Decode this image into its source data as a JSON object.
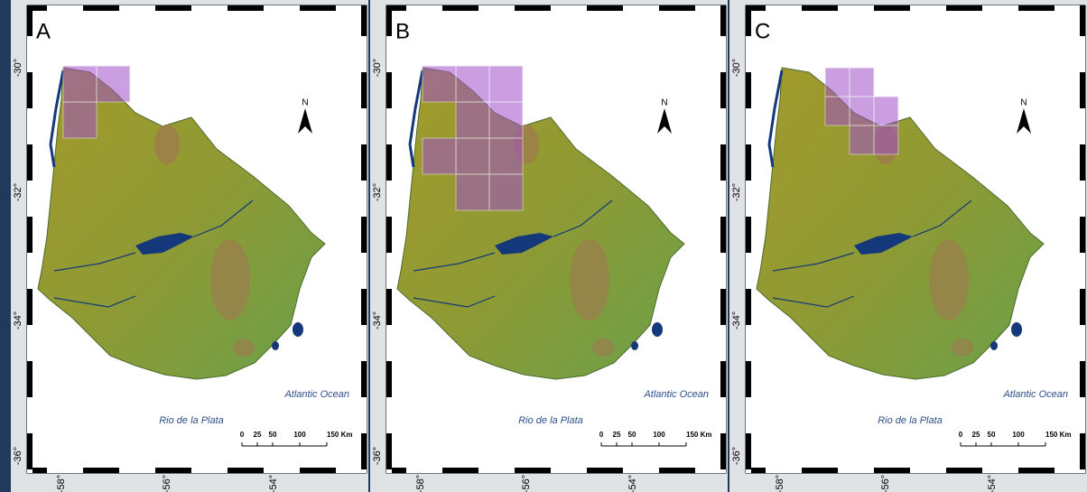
{
  "panels": [
    {
      "label": "A"
    },
    {
      "label": "B"
    },
    {
      "label": "C"
    }
  ],
  "lat_labels": [
    "-30°",
    "-32°",
    "-34°",
    "-36°"
  ],
  "lon_labels": [
    "-58°",
    "-56°",
    "-54°"
  ],
  "north": "N",
  "ocean": "Atlantic Ocean",
  "river": "Rio de la Plata",
  "scale_labels": [
    "0",
    "25",
    "50",
    "100",
    "150 Km"
  ]
}
